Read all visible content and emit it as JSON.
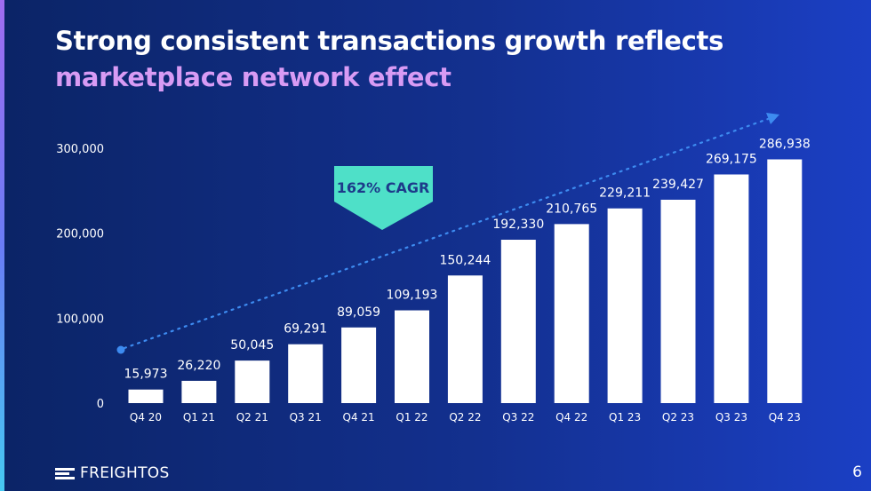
{
  "slide": {
    "title_line1": "Strong consistent transactions growth reflects",
    "title_line2": "marketplace network effect",
    "page_number": "6",
    "brand": "FREIGHTOS"
  },
  "colors": {
    "bar": "#ffffff",
    "title_accent": "#d89bf4",
    "trend": "#3d8bf0",
    "badge": "#4ee0c8",
    "badge_text": "#1d3a8a"
  },
  "chart_data": {
    "type": "bar",
    "categories": [
      "Q4 20",
      "Q1 21",
      "Q2 21",
      "Q3 21",
      "Q4 21",
      "Q1 22",
      "Q2 22",
      "Q3 22",
      "Q4 22",
      "Q1 23",
      "Q2 23",
      "Q3 23",
      "Q4 23"
    ],
    "values": [
      15973,
      26220,
      50045,
      69291,
      89059,
      109193,
      150244,
      192330,
      210765,
      229211,
      239427,
      269175,
      286938
    ],
    "value_labels": [
      "15,973",
      "26,220",
      "50,045",
      "69,291",
      "89,059",
      "109,193",
      "150,244",
      "192,330",
      "210,765",
      "229,211",
      "239,427",
      "269,175",
      "286,938"
    ],
    "y_ticks": [
      0,
      100000,
      200000,
      300000
    ],
    "y_tick_labels": [
      "0",
      "100,000",
      "200,000",
      "300,000"
    ],
    "ylim": [
      0,
      300000
    ],
    "grid": false,
    "annotation": "162% CAGR",
    "trend_arrow": true
  }
}
